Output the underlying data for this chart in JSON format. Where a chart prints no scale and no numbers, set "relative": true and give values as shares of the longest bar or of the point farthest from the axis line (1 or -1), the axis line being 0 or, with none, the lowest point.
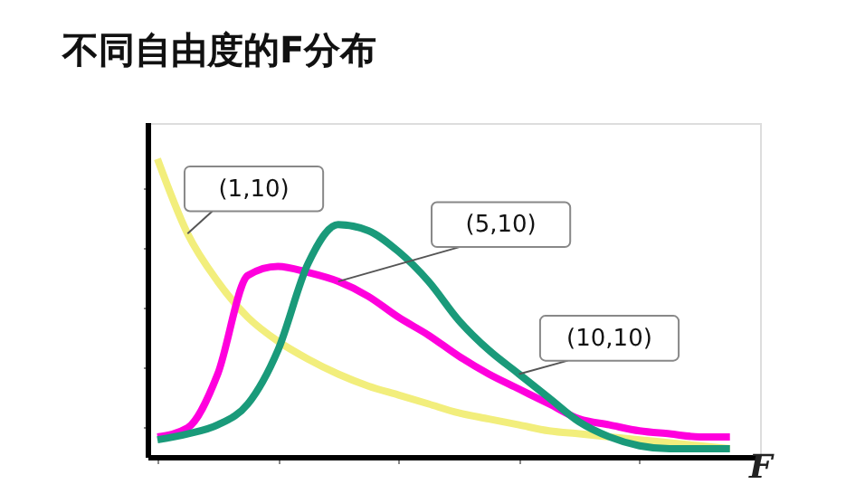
{
  "chart_data": {
    "type": "line",
    "title": "不同自由度的F分布",
    "xlabel": "F",
    "relative": true,
    "grid": false,
    "categories": [
      null,
      null,
      null,
      null,
      null,
      null,
      null,
      null,
      null,
      null,
      null,
      null,
      null,
      null,
      null,
      null,
      null,
      null,
      null,
      null
    ],
    "series": [
      {
        "name": "(1,10)",
        "color": "#f2ee7c",
        "values": [
          1.0,
          0.75,
          0.59,
          0.47,
          0.39,
          0.33,
          0.28,
          0.24,
          0.21,
          0.18,
          0.15,
          0.13,
          0.11,
          0.09,
          0.08,
          0.07,
          0.06,
          0.05,
          0.04,
          0.03
        ]
      },
      {
        "name": "(5,10)",
        "color": "#ff00dd",
        "values": [
          0.07,
          0.1,
          0.28,
          0.61,
          0.64,
          0.62,
          0.59,
          0.54,
          0.47,
          0.41,
          0.34,
          0.28,
          0.23,
          0.18,
          0.13,
          0.11,
          0.09,
          0.08,
          0.07,
          0.07
        ]
      },
      {
        "name": "(10,10)",
        "color": "#1a9a7a",
        "values": [
          0.06,
          0.08,
          0.11,
          0.18,
          0.36,
          0.65,
          0.78,
          0.76,
          0.69,
          0.59,
          0.46,
          0.36,
          0.28,
          0.2,
          0.12,
          0.07,
          0.04,
          0.03,
          0.03,
          0.03
        ]
      }
    ]
  }
}
